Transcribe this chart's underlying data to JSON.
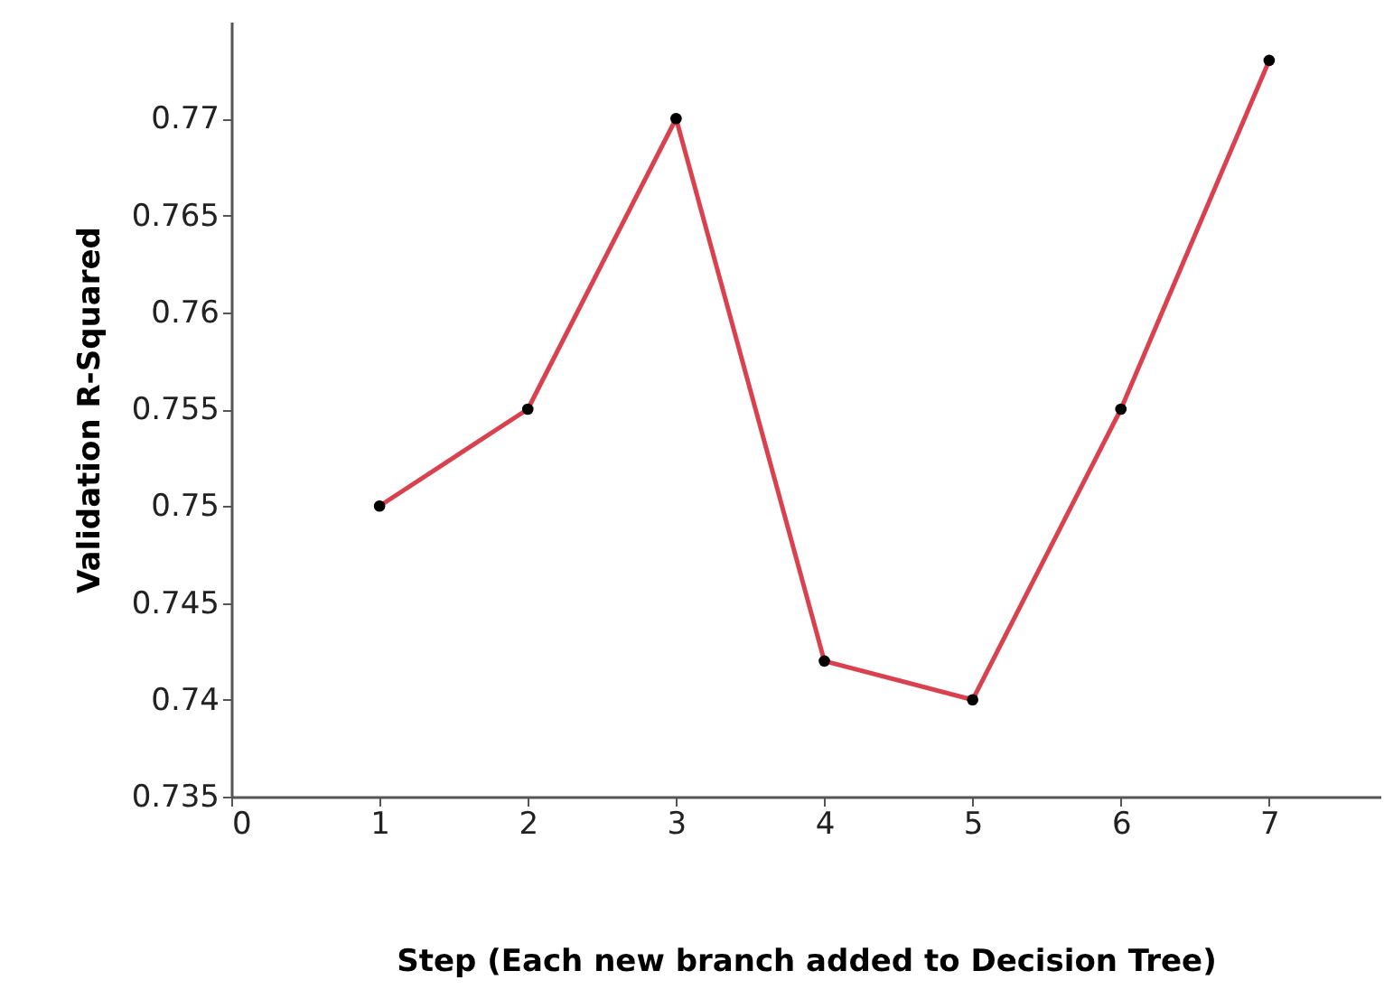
{
  "chart_data": {
    "type": "line",
    "xlabel": "Step (Each new branch added to Decision Tree)",
    "ylabel": "Validation R-Squared",
    "x": [
      1,
      2,
      3,
      4,
      5,
      6,
      7
    ],
    "series": [
      {
        "color": "#d9414f",
        "values": [
          0.75,
          0.755,
          0.77,
          0.742,
          0.74,
          0.755,
          0.773
        ]
      }
    ],
    "xlim": [
      0,
      7.75
    ],
    "xticks": [
      0,
      1,
      2,
      3,
      4,
      5,
      6,
      7
    ],
    "ylim": [
      0.735,
      0.775
    ],
    "yticks": [
      0.735,
      0.74,
      0.745,
      0.75,
      0.755,
      0.76,
      0.765,
      0.77
    ],
    "grid": false,
    "marker": "circle",
    "line_style": "solid"
  }
}
